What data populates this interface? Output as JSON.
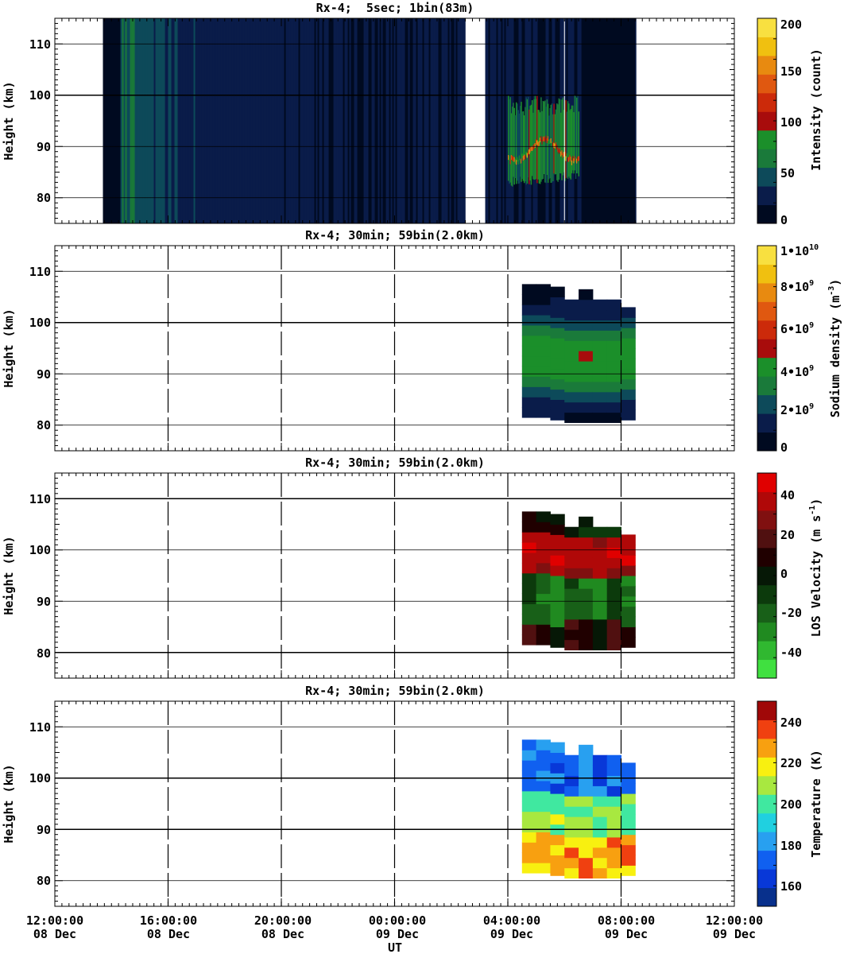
{
  "chart_data": [
    {
      "type": "heatmap",
      "title": "Rx-4;  5sec; 1bin(83m)",
      "ylabel": "Height (km)",
      "ylim": [
        75,
        115
      ],
      "yticks": [
        "80",
        "90",
        "100",
        "110"
      ],
      "colorbar_label": "Intensity (count)",
      "colorbar_ticks": [
        "0",
        "50",
        "100",
        "150",
        "200"
      ],
      "colorbar_range": [
        0,
        210
      ],
      "grid": true
    },
    {
      "type": "heatmap",
      "title": "Rx-4; 30min; 59bin(2.0km)",
      "ylabel": "Height (km)",
      "ylim": [
        75,
        115
      ],
      "yticks": [
        "80",
        "90",
        "100",
        "110"
      ],
      "colorbar_label_main": "Sodium density (m",
      "colorbar_label_sup": "-3",
      "colorbar_label_end": ")",
      "colorbar_ticks": [
        {
          "mant": "0",
          "exp": ""
        },
        {
          "mant": "2•10",
          "exp": "9"
        },
        {
          "mant": "4•10",
          "exp": "9"
        },
        {
          "mant": "6•10",
          "exp": "9"
        },
        {
          "mant": "8•10",
          "exp": "9"
        },
        {
          "mant": "1•10",
          "exp": "10"
        }
      ],
      "colorbar_range": [
        0,
        10
      ],
      "grid": true
    },
    {
      "type": "heatmap",
      "title": "Rx-4; 30min; 59bin(2.0km)",
      "ylabel": "Height (km)",
      "ylim": [
        75,
        115
      ],
      "yticks": [
        "80",
        "90",
        "100",
        "110"
      ],
      "colorbar_label_main": "LOS Velocity (m s",
      "colorbar_label_sup": "-1",
      "colorbar_label_end": ")",
      "colorbar_ticks": [
        "-40",
        "-20",
        "0",
        "20",
        "40"
      ],
      "colorbar_range": [
        -50,
        50
      ],
      "grid": true
    },
    {
      "type": "heatmap",
      "title": "Rx-4; 30min; 59bin(2.0km)",
      "ylabel": "Height (km)",
      "ylim": [
        75,
        115
      ],
      "yticks": [
        "80",
        "90",
        "100",
        "110"
      ],
      "colorbar_label": "Temperature (K)",
      "colorbar_ticks": [
        "160",
        "180",
        "200",
        "220",
        "240"
      ],
      "colorbar_range": [
        150,
        250
      ],
      "grid": true
    }
  ],
  "x_axis": {
    "label": "UT",
    "tick_labels": [
      {
        "time": "12:00:00",
        "date": "08 Dec"
      },
      {
        "time": "16:00:00",
        "date": "08 Dec"
      },
      {
        "time": "20:00:00",
        "date": "08 Dec"
      },
      {
        "time": "00:00:00",
        "date": "09 Dec"
      },
      {
        "time": "04:00:00",
        "date": "09 Dec"
      },
      {
        "time": "08:00:00",
        "date": "09 Dec"
      },
      {
        "time": "12:00:00",
        "date": "09 Dec"
      }
    ]
  },
  "colors": {
    "intensity": [
      "#000a20",
      "#0a1c4a",
      "#0d4a5a",
      "#1a7a3a",
      "#1b8f2a",
      "#a80c0c",
      "#cc2a0a",
      "#e05810",
      "#e88a10",
      "#f0c010",
      "#f8e040"
    ],
    "density": [
      "#000a20",
      "#0a1c4a",
      "#0d4a5a",
      "#1a7a3a",
      "#1b8f2a",
      "#a80c0c",
      "#cc2a0a",
      "#e05810",
      "#e88a10",
      "#f0c010",
      "#f8e040"
    ],
    "velocity": [
      "#40e040",
      "#30b830",
      "#208a20",
      "#186018",
      "#0c3a0c",
      "#061806",
      "#200000",
      "#501010",
      "#801010",
      "#b00808",
      "#e00000"
    ],
    "temperature": [
      "#08308c",
      "#0838d8",
      "#1060f0",
      "#28a0f0",
      "#20d0e0",
      "#40e8a0",
      "#a8e840",
      "#f8f010",
      "#f8a010",
      "#f04010",
      "#a00808"
    ]
  }
}
